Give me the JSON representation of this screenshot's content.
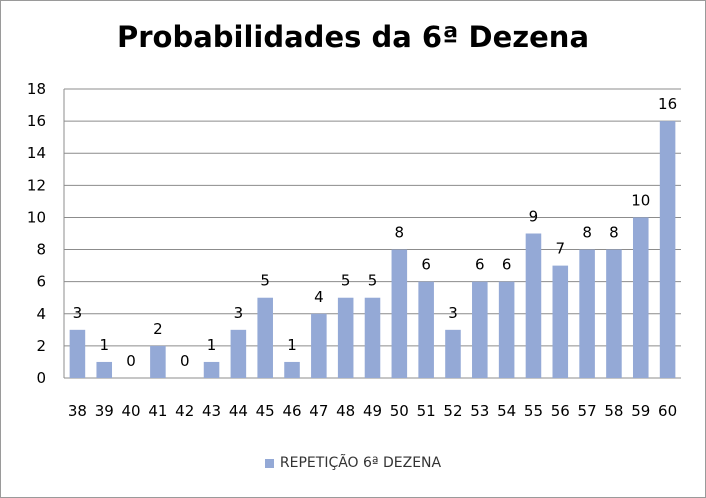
{
  "chart_data": {
    "type": "bar",
    "title": "Probabilidades da 6ª Dezena",
    "categories": [
      "38",
      "39",
      "40",
      "41",
      "42",
      "43",
      "44",
      "45",
      "46",
      "47",
      "48",
      "49",
      "50",
      "51",
      "52",
      "53",
      "54",
      "55",
      "56",
      "57",
      "58",
      "59",
      "60"
    ],
    "series": [
      {
        "name": "REPETIÇÃO 6ª DEZENA",
        "values": [
          3,
          1,
          0,
          2,
          0,
          1,
          3,
          5,
          1,
          4,
          5,
          5,
          8,
          6,
          3,
          6,
          6,
          9,
          7,
          8,
          8,
          10,
          16
        ]
      }
    ],
    "ylim": [
      0,
      18
    ],
    "yticks": [
      0,
      2,
      4,
      6,
      8,
      10,
      12,
      14,
      16,
      18
    ],
    "grid": true,
    "legend_position": "bottom",
    "data_labels": true,
    "bar_color": "#94a9d6"
  }
}
